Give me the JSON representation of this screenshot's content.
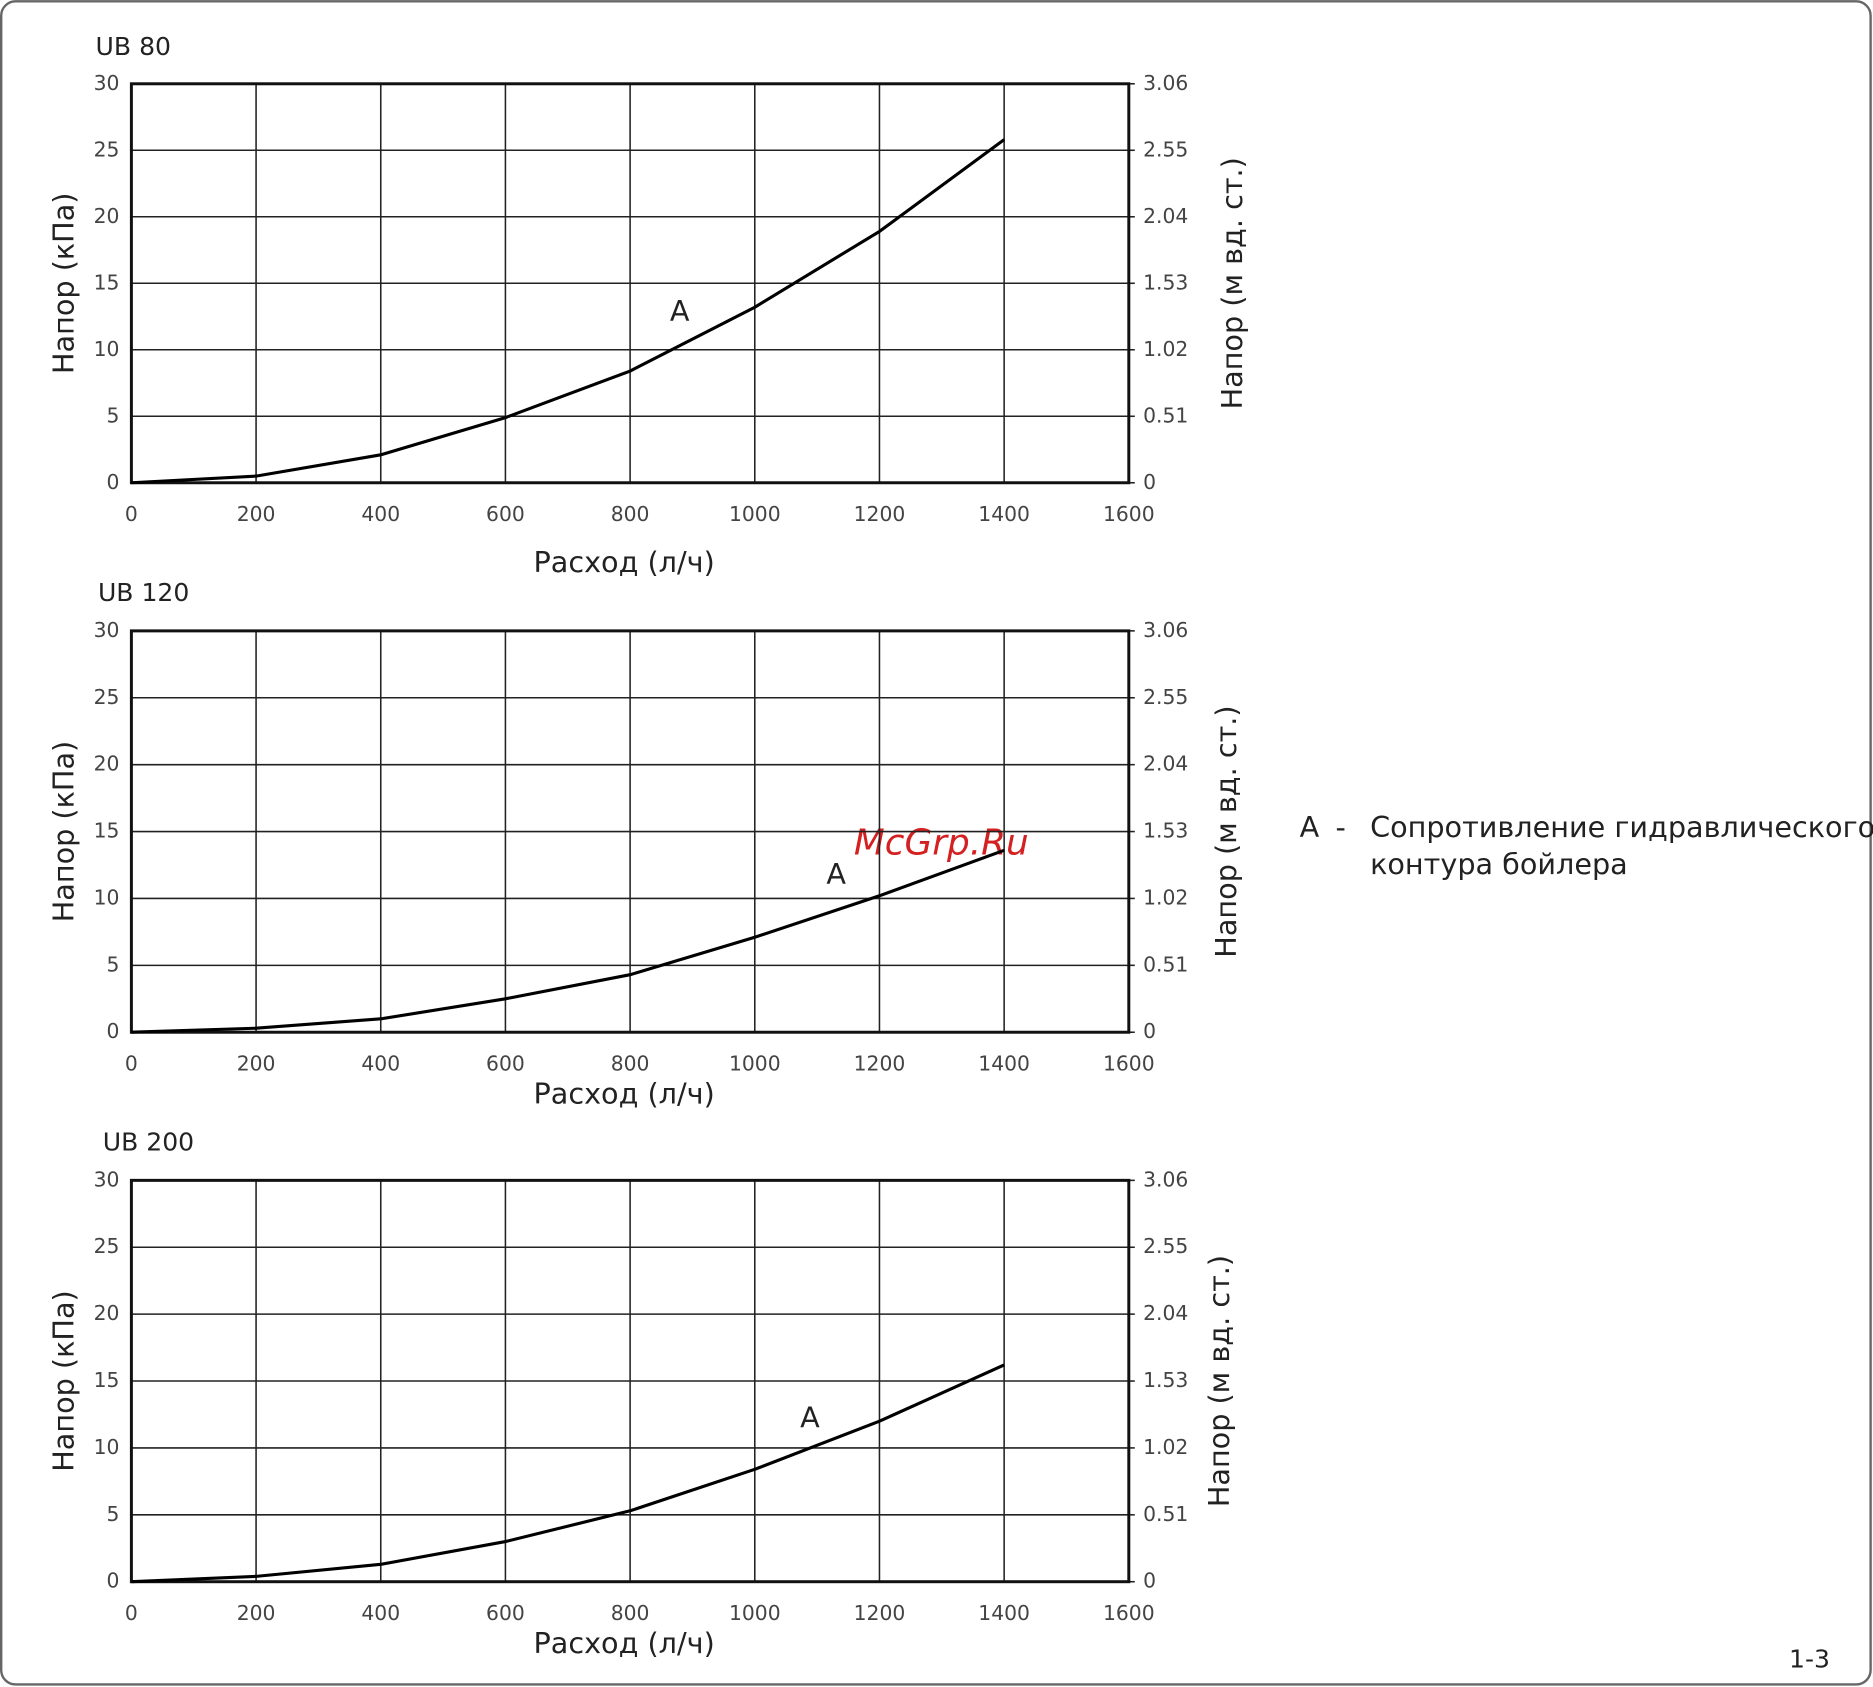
{
  "chart_data": [
    {
      "type": "line",
      "title": "UB 80",
      "x": [
        0,
        200,
        400,
        600,
        800,
        1000,
        1200,
        1400
      ],
      "values": [
        0,
        0.5,
        2.1,
        4.9,
        8.4,
        13.2,
        18.9,
        25.8
      ],
      "color": "#000000",
      "xlim": [
        0,
        1600
      ],
      "xticks": [
        0,
        200,
        400,
        600,
        800,
        1000,
        1200,
        1400,
        1600
      ],
      "ylim": [
        0,
        30
      ],
      "yticks": [
        0,
        5,
        10,
        15,
        20,
        25,
        30
      ],
      "y2lim": [
        0,
        3.06
      ],
      "y2ticks": [
        0,
        0.51,
        1.02,
        1.53,
        2.04,
        2.55,
        3.06
      ],
      "xlabel": "Расход (л/ч)",
      "ylabel": "Напор (кПа)",
      "y2label": "Напор (м вд. ст.)",
      "annotation": "A",
      "grid": true
    },
    {
      "type": "line",
      "title": "UB 120",
      "x": [
        0,
        200,
        400,
        600,
        800,
        1000,
        1200,
        1400
      ],
      "values": [
        0,
        0.3,
        1.0,
        2.5,
        4.3,
        7.1,
        10.2,
        13.6
      ],
      "color": "#000000",
      "xlim": [
        0,
        1600
      ],
      "xticks": [
        0,
        200,
        400,
        600,
        800,
        1000,
        1200,
        1400,
        1600
      ],
      "ylim": [
        0,
        30
      ],
      "yticks": [
        0,
        5,
        10,
        15,
        20,
        25,
        30
      ],
      "y2lim": [
        0,
        3.06
      ],
      "y2ticks": [
        0,
        0.51,
        1.02,
        1.53,
        2.04,
        2.55,
        3.06
      ],
      "xlabel": "Расход (л/ч)",
      "ylabel": "Напор (кПа)",
      "y2label": "Напор (м вд. ст.)",
      "annotation": "A",
      "grid": true
    },
    {
      "type": "line",
      "title": "UB 200",
      "x": [
        0,
        200,
        400,
        600,
        800,
        1000,
        1200,
        1400
      ],
      "values": [
        0,
        0.4,
        1.3,
        3.0,
        5.3,
        8.4,
        12.0,
        16.2
      ],
      "color": "#000000",
      "xlim": [
        0,
        1600
      ],
      "xticks": [
        0,
        200,
        400,
        600,
        800,
        1000,
        1200,
        1400,
        1600
      ],
      "ylim": [
        0,
        30
      ],
      "yticks": [
        0,
        5,
        10,
        15,
        20,
        25,
        30
      ],
      "y2lim": [
        0,
        3.06
      ],
      "y2ticks": [
        0,
        0.51,
        1.02,
        1.53,
        2.04,
        2.55,
        3.06
      ],
      "xlabel": "Расход (л/ч)",
      "ylabel": "Напор (кПа)",
      "y2label": "Напор (м вд. ст.)",
      "annotation": "A",
      "grid": true
    }
  ],
  "legend_note": {
    "key": "A",
    "dash": "-",
    "text": [
      "Сопротивление гидравлического",
      "контура бойлера"
    ]
  },
  "watermark": "McGrp.Ru",
  "page_number": "1-3"
}
